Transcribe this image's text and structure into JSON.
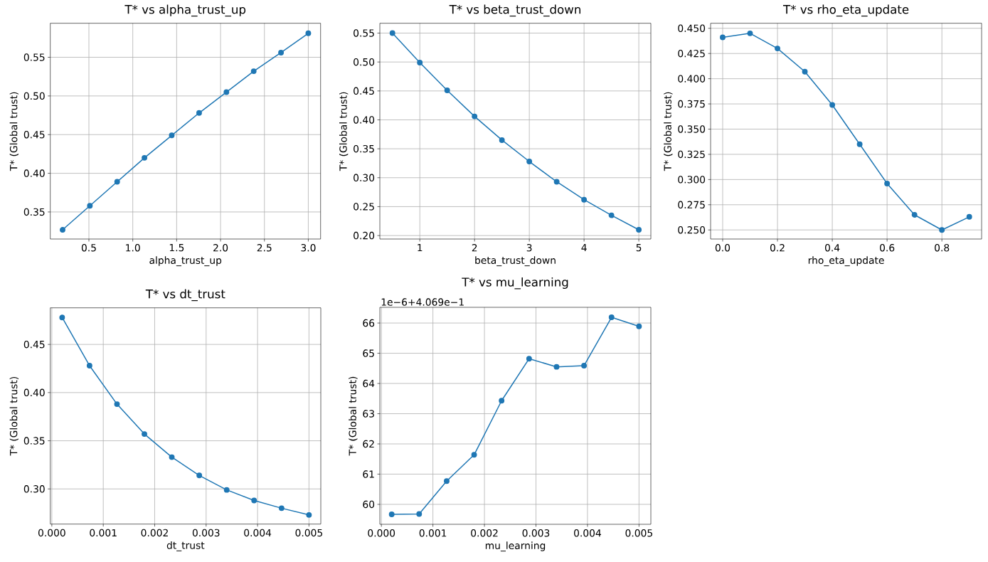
{
  "chart_data": [
    {
      "type": "line",
      "title": "T* vs alpha_trust_up",
      "xlabel": "alpha_trust_up",
      "ylabel": "T* (Global trust)",
      "color": "#1f77b4",
      "marker": "circle",
      "grid": true,
      "x": [
        0.2,
        0.511,
        0.822,
        1.133,
        1.444,
        1.756,
        2.067,
        2.378,
        2.689,
        3.0
      ],
      "values": [
        0.327,
        0.358,
        0.389,
        0.42,
        0.449,
        0.478,
        0.505,
        0.532,
        0.556,
        0.581
      ],
      "xlim": [
        0.06,
        3.14
      ],
      "ylim": [
        0.315,
        0.594
      ],
      "xticks": [
        0.5,
        {
          "value": 1.0,
          "label": "1.0"
        },
        1.5,
        {
          "value": 2.0,
          "label": "2.0"
        },
        2.5,
        {
          "value": 3.0,
          "label": "3.0"
        }
      ],
      "yticks": [
        0.35,
        {
          "value": 0.4,
          "label": "0.40"
        },
        0.45,
        {
          "value": 0.5,
          "label": "0.50"
        },
        0.55
      ]
    },
    {
      "type": "line",
      "title": "T* vs beta_trust_down",
      "xlabel": "beta_trust_down",
      "ylabel": "T* (Global trust)",
      "color": "#1f77b4",
      "marker": "circle",
      "grid": true,
      "x": [
        0.5,
        1.0,
        1.5,
        2.0,
        2.5,
        3.0,
        3.5,
        4.0,
        4.5,
        5.0
      ],
      "values": [
        0.55,
        0.499,
        0.451,
        0.406,
        0.365,
        0.328,
        0.293,
        0.262,
        0.235,
        0.21
      ],
      "xlim": [
        0.27,
        5.22
      ],
      "ylim": [
        0.194,
        0.567
      ],
      "xticks": [
        1,
        2,
        3,
        4,
        5
      ],
      "yticks": [
        {
          "value": 0.2,
          "label": "0.20"
        },
        0.25,
        {
          "value": 0.3,
          "label": "0.30"
        },
        0.35,
        {
          "value": 0.4,
          "label": "0.40"
        },
        0.45,
        {
          "value": 0.5,
          "label": "0.50"
        },
        0.55
      ]
    },
    {
      "type": "line",
      "title": "T* vs rho_eta_update",
      "xlabel": "rho_eta_update",
      "ylabel": "T* (Global trust)",
      "color": "#1f77b4",
      "marker": "circle",
      "grid": true,
      "x": [
        0.0,
        0.1,
        0.2,
        0.3,
        0.4,
        0.5,
        0.6,
        0.7,
        0.8,
        0.9
      ],
      "values": [
        0.441,
        0.445,
        0.43,
        0.407,
        0.374,
        0.335,
        0.296,
        0.265,
        0.25,
        0.263
      ],
      "xlim": [
        -0.044,
        0.945
      ],
      "ylim": [
        0.241,
        0.455
      ],
      "xticks": [
        {
          "value": 0.0,
          "label": "0.0"
        },
        0.2,
        0.4,
        0.6,
        0.8
      ],
      "yticks": [
        {
          "value": 0.25,
          "label": "0.250"
        },
        0.275,
        {
          "value": 0.3,
          "label": "0.300"
        },
        0.325,
        {
          "value": 0.35,
          "label": "0.350"
        },
        0.375,
        {
          "value": 0.4,
          "label": "0.400"
        },
        0.425,
        {
          "value": 0.45,
          "label": "0.450"
        }
      ]
    },
    {
      "type": "line",
      "title": "T* vs dt_trust",
      "xlabel": "dt_trust",
      "ylabel": "T* (Global trust)",
      "color": "#1f77b4",
      "marker": "circle",
      "grid": true,
      "x": [
        0.0002,
        0.000733,
        0.001267,
        0.0018,
        0.002333,
        0.002867,
        0.0034,
        0.003933,
        0.004467,
        0.005
      ],
      "values": [
        0.478,
        0.428,
        0.388,
        0.357,
        0.333,
        0.314,
        0.299,
        0.288,
        0.28,
        0.273
      ],
      "xlim": [
        -3e-05,
        0.00523
      ],
      "ylim": [
        0.2635,
        0.488
      ],
      "xticks": [
        {
          "value": 0.0,
          "label": "0.000"
        },
        {
          "value": 0.001,
          "label": "0.001"
        },
        {
          "value": 0.002,
          "label": "0.002"
        },
        {
          "value": 0.003,
          "label": "0.003"
        },
        {
          "value": 0.004,
          "label": "0.004"
        },
        {
          "value": 0.005,
          "label": "0.005"
        }
      ],
      "yticks": [
        {
          "value": 0.3,
          "label": "0.30"
        },
        0.35,
        {
          "value": 0.4,
          "label": "0.40"
        },
        0.45
      ]
    },
    {
      "type": "line",
      "title": "T* vs mu_learning",
      "xlabel": "mu_learning",
      "ylabel": "T* (Global trust)",
      "color": "#1f77b4",
      "marker": "circle",
      "grid": true,
      "annotations": [
        "1e−6+4.069e−1"
      ],
      "x": [
        0.0002,
        0.000733,
        0.001267,
        0.0018,
        0.002333,
        0.002867,
        0.0034,
        0.003933,
        0.004467,
        0.005
      ],
      "values": [
        59.67,
        59.68,
        60.77,
        61.64,
        63.43,
        64.82,
        64.55,
        64.59,
        66.19,
        65.89
      ],
      "xlim": [
        -3e-05,
        0.00523
      ],
      "ylim": [
        59.34,
        66.52
      ],
      "xticks": [
        {
          "value": 0.0,
          "label": "0.000"
        },
        {
          "value": 0.001,
          "label": "0.001"
        },
        {
          "value": 0.002,
          "label": "0.002"
        },
        {
          "value": 0.003,
          "label": "0.003"
        },
        {
          "value": 0.004,
          "label": "0.004"
        },
        {
          "value": 0.005,
          "label": "0.005"
        }
      ],
      "yticks": [
        60,
        61,
        62,
        63,
        64,
        65,
        66
      ]
    }
  ]
}
